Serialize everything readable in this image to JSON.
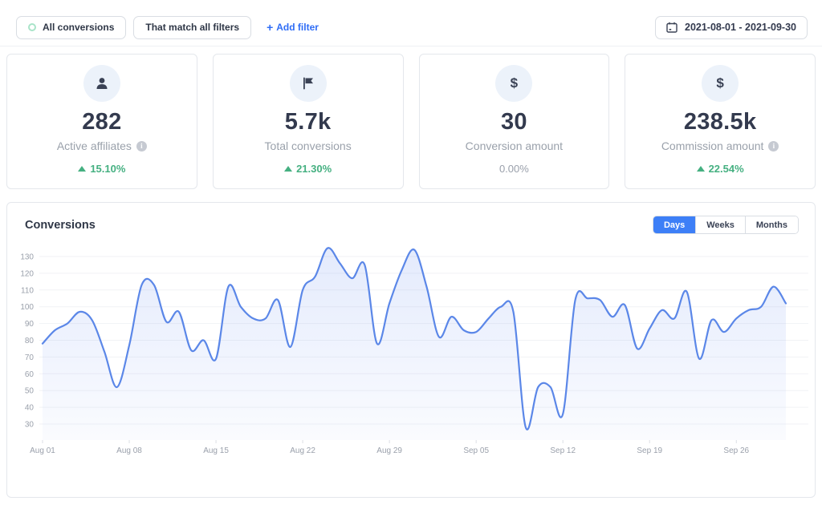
{
  "filter_bar": {
    "all_conversions_label": "All conversions",
    "match_filters_label": "That match all filters",
    "add_filter_plus": "+",
    "add_filter_label": "Add filter",
    "date_range": "2021-08-01 - 2021-09-30"
  },
  "stat_cards": [
    {
      "icon": "person-icon",
      "value": "282",
      "label": "Active affiliates",
      "has_info": true,
      "delta": "15.10%",
      "delta_direction": "up"
    },
    {
      "icon": "flag-icon",
      "value": "5.7k",
      "label": "Total conversions",
      "has_info": false,
      "delta": "21.30%",
      "delta_direction": "up"
    },
    {
      "icon": "dollar-icon",
      "value": "30",
      "label": "Conversion amount",
      "has_info": false,
      "delta": "0.00%",
      "delta_direction": "none"
    },
    {
      "icon": "dollar-icon",
      "value": "238.5k",
      "label": "Commission amount",
      "has_info": true,
      "delta": "22.54%",
      "delta_direction": "up"
    }
  ],
  "colors": {
    "accent_blue": "#3d7ff7",
    "link_blue": "#2f6df6",
    "green": "#45b081",
    "line_blue": "#5b87e8",
    "muted_text": "#9aa0ab"
  },
  "chart_card": {
    "title": "Conversions",
    "range_tabs": [
      {
        "label": "Days",
        "active": true
      },
      {
        "label": "Weeks",
        "active": false
      },
      {
        "label": "Months",
        "active": false
      }
    ]
  },
  "chart_data": {
    "type": "area",
    "title": "Conversions",
    "grid": true,
    "legend": false,
    "ylim": [
      30,
      130
    ],
    "y_ticks": [
      130,
      120,
      110,
      100,
      90,
      80,
      70,
      60,
      50,
      40,
      30
    ],
    "x": [
      "Aug 01",
      "Aug 02",
      "Aug 03",
      "Aug 04",
      "Aug 05",
      "Aug 06",
      "Aug 07",
      "Aug 08",
      "Aug 09",
      "Aug 10",
      "Aug 11",
      "Aug 12",
      "Aug 13",
      "Aug 14",
      "Aug 15",
      "Aug 16",
      "Aug 17",
      "Aug 18",
      "Aug 19",
      "Aug 20",
      "Aug 21",
      "Aug 22",
      "Aug 23",
      "Aug 24",
      "Aug 25",
      "Aug 26",
      "Aug 27",
      "Aug 28",
      "Aug 29",
      "Aug 30",
      "Aug 31",
      "Sep 01",
      "Sep 02",
      "Sep 03",
      "Sep 04",
      "Sep 05",
      "Sep 06",
      "Sep 07",
      "Sep 08",
      "Sep 09",
      "Sep 10",
      "Sep 11",
      "Sep 12",
      "Sep 13",
      "Sep 14",
      "Sep 15",
      "Sep 16",
      "Sep 17",
      "Sep 18",
      "Sep 19",
      "Sep 20",
      "Sep 21",
      "Sep 22",
      "Sep 23",
      "Sep 24",
      "Sep 25",
      "Sep 26",
      "Sep 27",
      "Sep 28",
      "Sep 29",
      "Sep 30"
    ],
    "values": [
      78,
      86,
      90,
      97,
      92,
      73,
      52,
      77,
      113,
      113,
      91,
      97,
      74,
      80,
      69,
      112,
      100,
      93,
      93,
      104,
      76,
      110,
      118,
      135,
      126,
      117,
      125,
      78,
      102,
      122,
      134,
      112,
      82,
      94,
      86,
      85,
      93,
      100,
      97,
      28,
      52,
      52,
      36,
      104,
      105,
      104,
      94,
      101,
      75,
      87,
      98,
      93,
      109,
      69,
      92,
      85,
      93,
      98,
      100,
      112,
      102
    ],
    "x_tick_indices": [
      0,
      7,
      14,
      21,
      28,
      35,
      42,
      49,
      56
    ],
    "x_tick_labels": [
      "Aug 01",
      "Aug 08",
      "Aug 15",
      "Aug 22",
      "Aug 29",
      "Sep 05",
      "Sep 12",
      "Sep 19",
      "Sep 26"
    ],
    "line_color": "#5b87e8",
    "fill_top": "rgba(96,136,240,0.17)",
    "fill_bottom": "rgba(96,136,240,0.03)",
    "grid_color": "#f1f2f5"
  }
}
